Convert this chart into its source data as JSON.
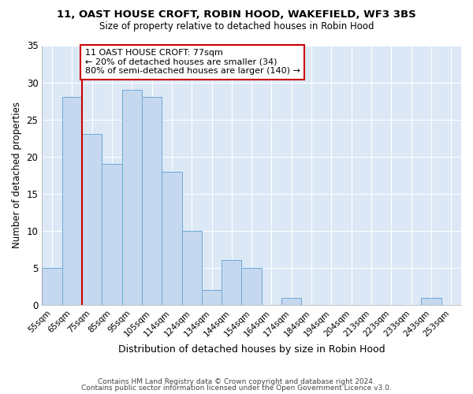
{
  "title1": "11, OAST HOUSE CROFT, ROBIN HOOD, WAKEFIELD, WF3 3BS",
  "title2": "Size of property relative to detached houses in Robin Hood",
  "xlabel": "Distribution of detached houses by size in Robin Hood",
  "ylabel": "Number of detached properties",
  "footer1": "Contains HM Land Registry data © Crown copyright and database right 2024.",
  "footer2": "Contains public sector information licensed under the Open Government Licence v3.0.",
  "categories": [
    "55sqm",
    "65sqm",
    "75sqm",
    "85sqm",
    "95sqm",
    "105sqm",
    "114sqm",
    "124sqm",
    "134sqm",
    "144sqm",
    "154sqm",
    "164sqm",
    "174sqm",
    "184sqm",
    "194sqm",
    "204sqm",
    "213sqm",
    "223sqm",
    "233sqm",
    "243sqm",
    "253sqm"
  ],
  "values": [
    5,
    28,
    23,
    19,
    29,
    28,
    18,
    10,
    2,
    6,
    5,
    0,
    1,
    0,
    0,
    0,
    0,
    0,
    0,
    1,
    0
  ],
  "bar_color": "#c5d8f0",
  "bar_edge_color": "#6aaad4",
  "property_line_x": 2,
  "annotation_text1": "11 OAST HOUSE CROFT: 77sqm",
  "annotation_text2": "← 20% of detached houses are smaller (34)",
  "annotation_text3": "80% of semi-detached houses are larger (140) →",
  "annotation_box_color": "#ffffff",
  "annotation_box_edge": "#cc0000",
  "line_color": "#cc0000",
  "ylim": [
    0,
    35
  ],
  "yticks": [
    0,
    5,
    10,
    15,
    20,
    25,
    30,
    35
  ],
  "fig_bg_color": "#ffffff",
  "plot_bg_color": "#dce8f5",
  "grid_color": "#ffffff"
}
